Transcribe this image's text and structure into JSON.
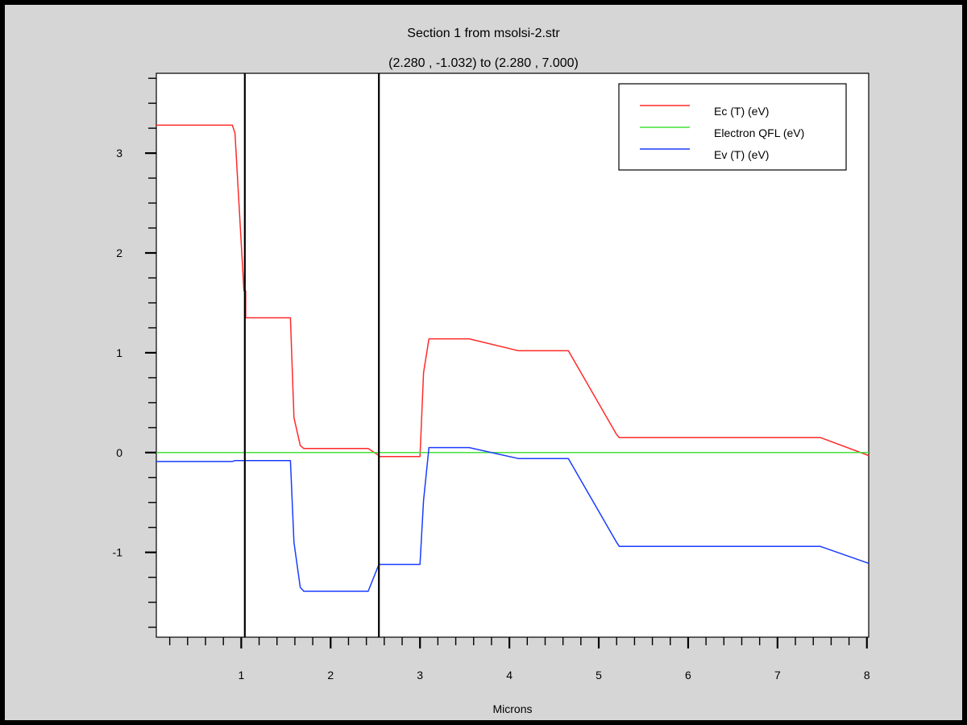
{
  "window": {
    "background": "#d6d6d6",
    "frame_color": "#000000"
  },
  "chart_data": {
    "type": "line",
    "title": "Section 1 from msolsi-2.str",
    "subtitle": "(2.280 , -1.032) to (2.280 , 7.000)",
    "xlabel": "Microns",
    "ylabel": "",
    "xlim": [
      0.05,
      8.02
    ],
    "ylim": [
      -1.85,
      3.8
    ],
    "x_ticks": [
      1,
      2,
      3,
      4,
      5,
      6,
      7,
      8
    ],
    "x_tick_labels": [
      "1",
      "2",
      "3",
      "4",
      "5",
      "6",
      "7",
      "8"
    ],
    "y_ticks": [
      3,
      2,
      1,
      0,
      -1
    ],
    "y_tick_labels": [
      "3",
      "2",
      "1",
      "0",
      "-1"
    ],
    "grid": false,
    "legend_position": "top-right",
    "vertical_lines": [
      1.04,
      2.54
    ],
    "series": [
      {
        "name": "Ec (T) (eV)",
        "color": "#ff2a2a",
        "x": [
          0.05,
          0.9,
          0.93,
          1.03,
          1.05,
          1.05,
          1.55,
          1.59,
          1.66,
          1.7,
          2.42,
          2.54,
          2.55,
          3.0,
          3.04,
          3.1,
          3.55,
          4.1,
          4.66,
          5.2,
          5.23,
          7.48,
          8.02
        ],
        "y": [
          3.28,
          3.28,
          3.2,
          1.62,
          1.62,
          1.35,
          1.35,
          0.35,
          0.07,
          0.04,
          0.04,
          -0.03,
          -0.04,
          -0.04,
          0.8,
          1.14,
          1.14,
          1.02,
          1.02,
          0.18,
          0.15,
          0.15,
          -0.03
        ]
      },
      {
        "name": "Electron QFL (eV)",
        "color": "#44e03a",
        "x": [
          0.05,
          8.02
        ],
        "y": [
          0.0,
          0.0
        ]
      },
      {
        "name": "Ev (T) (eV)",
        "color": "#1a3cff",
        "x": [
          0.05,
          0.9,
          0.93,
          1.55,
          1.59,
          1.66,
          1.7,
          2.42,
          2.54,
          2.55,
          3.0,
          3.04,
          3.1,
          3.55,
          4.1,
          4.66,
          5.2,
          5.23,
          7.48,
          8.02
        ],
        "y": [
          -0.09,
          -0.09,
          -0.08,
          -0.08,
          -0.9,
          -1.35,
          -1.39,
          -1.39,
          -1.12,
          -1.12,
          -1.12,
          -0.48,
          0.05,
          0.05,
          -0.06,
          -0.06,
          -0.9,
          -0.94,
          -0.94,
          -1.11
        ]
      }
    ]
  }
}
